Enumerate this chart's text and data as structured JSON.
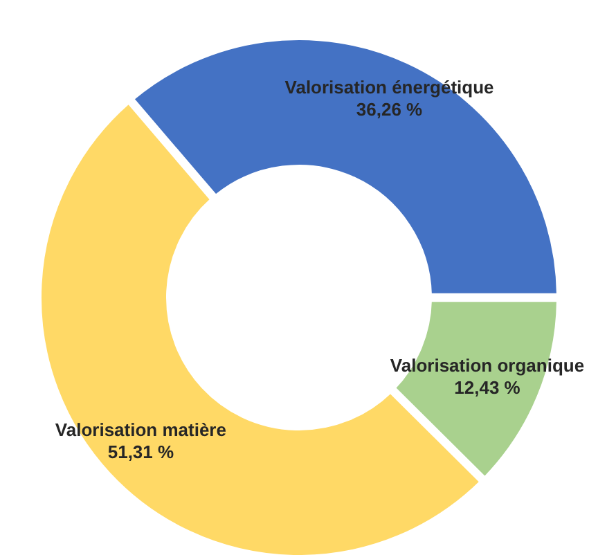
{
  "chart_data": {
    "type": "donut",
    "categories": [
      "Valorisation énergétique",
      "Valorisation organique",
      "Valorisation matière"
    ],
    "values": [
      36.26,
      12.43,
      51.31
    ],
    "value_labels": [
      "36,26 %",
      "12,43 %",
      "51,31 %"
    ],
    "colors": [
      "#4472c4",
      "#a9d18e",
      "#ffd966"
    ],
    "legend": false
  }
}
